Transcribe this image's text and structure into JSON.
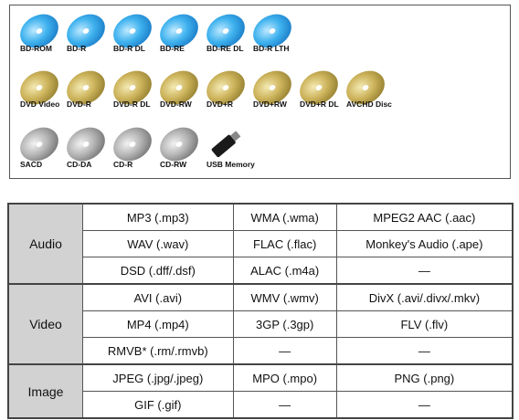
{
  "media": {
    "rows": [
      [
        "BD-ROM",
        "BD-R",
        "BD-R DL",
        "BD-RE",
        "BD-RE DL",
        "BD-R LTH"
      ],
      [
        "DVD Video",
        "DVD-R",
        "DVD-R DL",
        "DVD-RW",
        "DVD+R",
        "DVD+RW",
        "DVD+R DL",
        "AVCHD Disc"
      ],
      [
        "SACD",
        "CD-DA",
        "CD-R",
        "CD-RW",
        "USB Memory"
      ]
    ]
  },
  "table": {
    "groups": [
      {
        "name": "Audio",
        "rows": [
          [
            "MP3 (.mp3)",
            "WMA (.wma)",
            "MPEG2 AAC (.aac)"
          ],
          [
            "WAV (.wav)",
            "FLAC (.flac)",
            "Monkey's Audio (.ape)"
          ],
          [
            "DSD (.dff/.dsf)",
            "ALAC (.m4a)",
            "—"
          ]
        ]
      },
      {
        "name": "Video",
        "rows": [
          [
            "AVI (.avi)",
            "WMV (.wmv)",
            "DivX (.avi/.divx/.mkv)"
          ],
          [
            "MP4 (.mp4)",
            "3GP (.3gp)",
            "FLV (.flv)"
          ],
          [
            "RMVB* (.rm/.rmvb)",
            "—",
            "—"
          ]
        ]
      },
      {
        "name": "Image",
        "rows": [
          [
            "JPEG (.jpg/.jpeg)",
            "MPO (.mpo)",
            "PNG (.png)"
          ],
          [
            "GIF (.gif)",
            "—",
            "—"
          ]
        ]
      }
    ]
  }
}
